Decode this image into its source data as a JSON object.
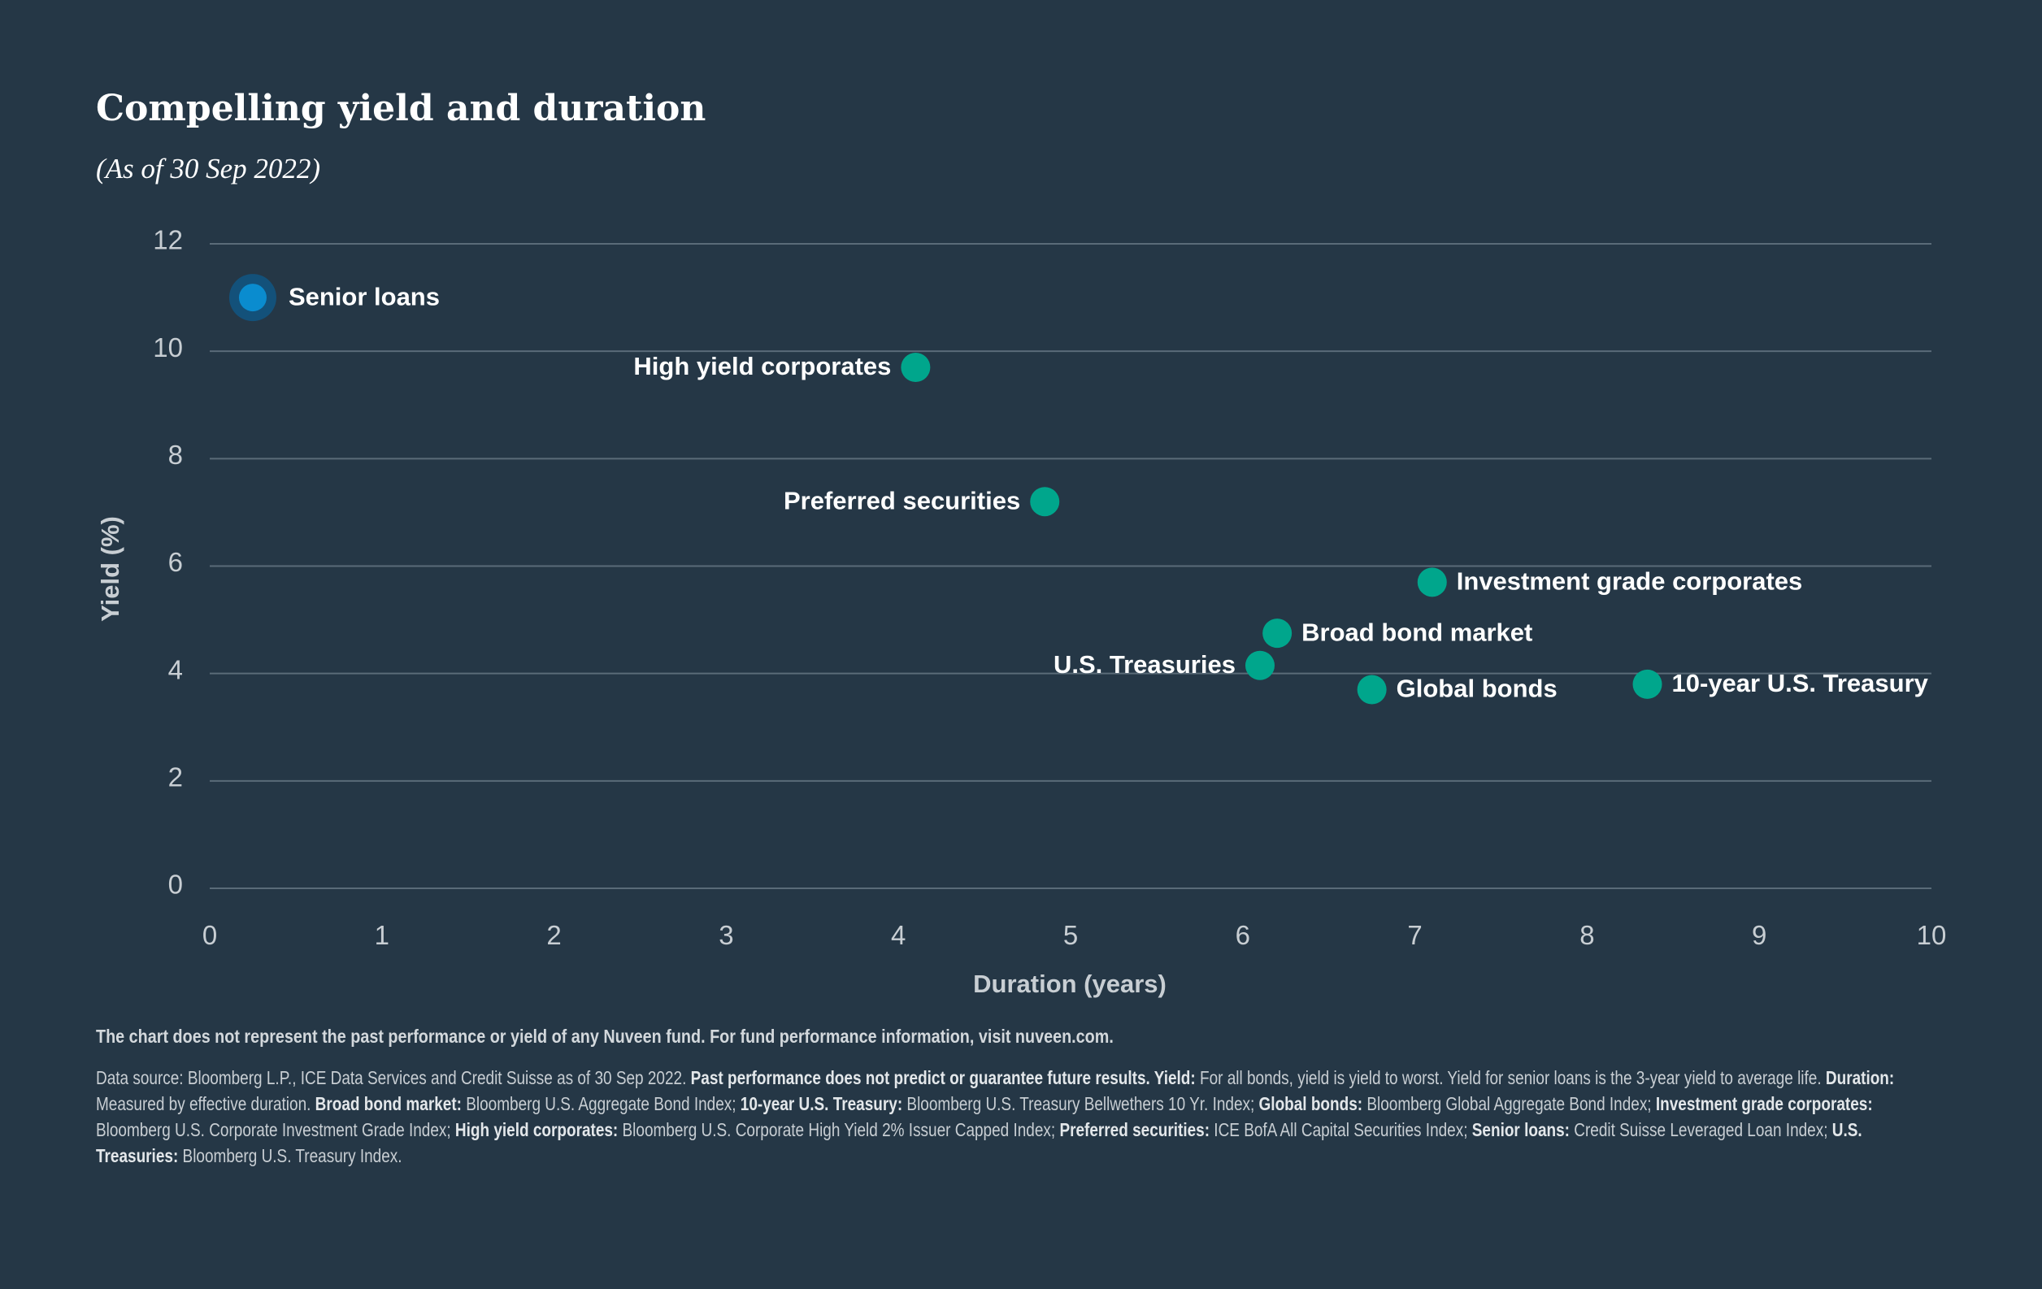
{
  "chart_data": {
    "type": "scatter",
    "title": "Compelling yield and duration",
    "subtitle": "(As of 30 Sep 2022)",
    "xlabel": "Duration (years)",
    "ylabel": "Yield (%)",
    "xlim": [
      0,
      10
    ],
    "ylim": [
      0,
      12
    ],
    "xticks": [
      "0",
      "1",
      "2",
      "3",
      "4",
      "5",
      "6",
      "7",
      "8",
      "9",
      "10"
    ],
    "yticks": [
      "0",
      "2",
      "4",
      "6",
      "8",
      "10",
      "12"
    ],
    "grid": "horizontal",
    "points": [
      {
        "name": "Senior loans",
        "x": 0.25,
        "y": 11.0,
        "highlight": true,
        "label_side": "right"
      },
      {
        "name": "High yield corporates",
        "x": 4.1,
        "y": 9.7,
        "highlight": false,
        "label_side": "left"
      },
      {
        "name": "Preferred securities",
        "x": 4.85,
        "y": 7.2,
        "highlight": false,
        "label_side": "left"
      },
      {
        "name": "Investment grade corporates",
        "x": 7.1,
        "y": 5.7,
        "highlight": false,
        "label_side": "right"
      },
      {
        "name": "Broad bond market",
        "x": 6.2,
        "y": 4.75,
        "highlight": false,
        "label_side": "right"
      },
      {
        "name": "U.S. Treasuries",
        "x": 6.1,
        "y": 4.15,
        "highlight": false,
        "label_side": "left"
      },
      {
        "name": "Global bonds",
        "x": 6.75,
        "y": 3.7,
        "highlight": false,
        "label_side": "right"
      },
      {
        "name": "10-year U.S. Treasury",
        "x": 8.35,
        "y": 3.8,
        "highlight": false,
        "label_side": "right"
      }
    ],
    "colors": {
      "point": "#00a68c",
      "highlight": "#0a8ccf",
      "highlight_halo": "#13517a",
      "grid": "#5a6b78",
      "background": "#253746"
    }
  },
  "footnote": "The chart does not represent the past performance or yield of any Nuveen fund. For fund performance information, visit nuveen.com.",
  "source_parts": [
    {
      "bold": false,
      "text": "Data source: Bloomberg L.P., ICE Data Services and Credit Suisse as of 30 Sep 2022. "
    },
    {
      "bold": true,
      "text": "Past performance does not predict or guarantee future results. Yield:"
    },
    {
      "bold": false,
      "text": " For all bonds, yield is yield to worst. Yield for senior loans is the 3-year yield to average life. "
    },
    {
      "bold": true,
      "text": "Duration:"
    },
    {
      "bold": false,
      "text": " Measured by effective duration. "
    },
    {
      "bold": true,
      "text": "Broad bond market:"
    },
    {
      "bold": false,
      "text": " Bloomberg U.S. Aggregate Bond Index; "
    },
    {
      "bold": true,
      "text": "10-year U.S. Treasury:"
    },
    {
      "bold": false,
      "text": " Bloomberg U.S. Treasury Bellwethers 10 Yr. Index; "
    },
    {
      "bold": true,
      "text": "Global bonds:"
    },
    {
      "bold": false,
      "text": " Bloomberg Global Aggregate Bond Index; "
    },
    {
      "bold": true,
      "text": "Investment grade corporates:"
    },
    {
      "bold": false,
      "text": " Bloomberg U.S. Corporate Investment Grade Index; "
    },
    {
      "bold": true,
      "text": "High yield corporates:"
    },
    {
      "bold": false,
      "text": " Bloomberg U.S. Corporate High Yield 2% Issuer Capped Index; "
    },
    {
      "bold": true,
      "text": "Preferred securities:"
    },
    {
      "bold": false,
      "text": " ICE BofA All Capital Securities Index; "
    },
    {
      "bold": true,
      "text": "Senior loans:"
    },
    {
      "bold": false,
      "text": " Credit Suisse Leveraged Loan Index; "
    },
    {
      "bold": true,
      "text": "U.S. Treasuries:"
    },
    {
      "bold": false,
      "text": " Bloomberg U.S. Treasury Index."
    }
  ]
}
